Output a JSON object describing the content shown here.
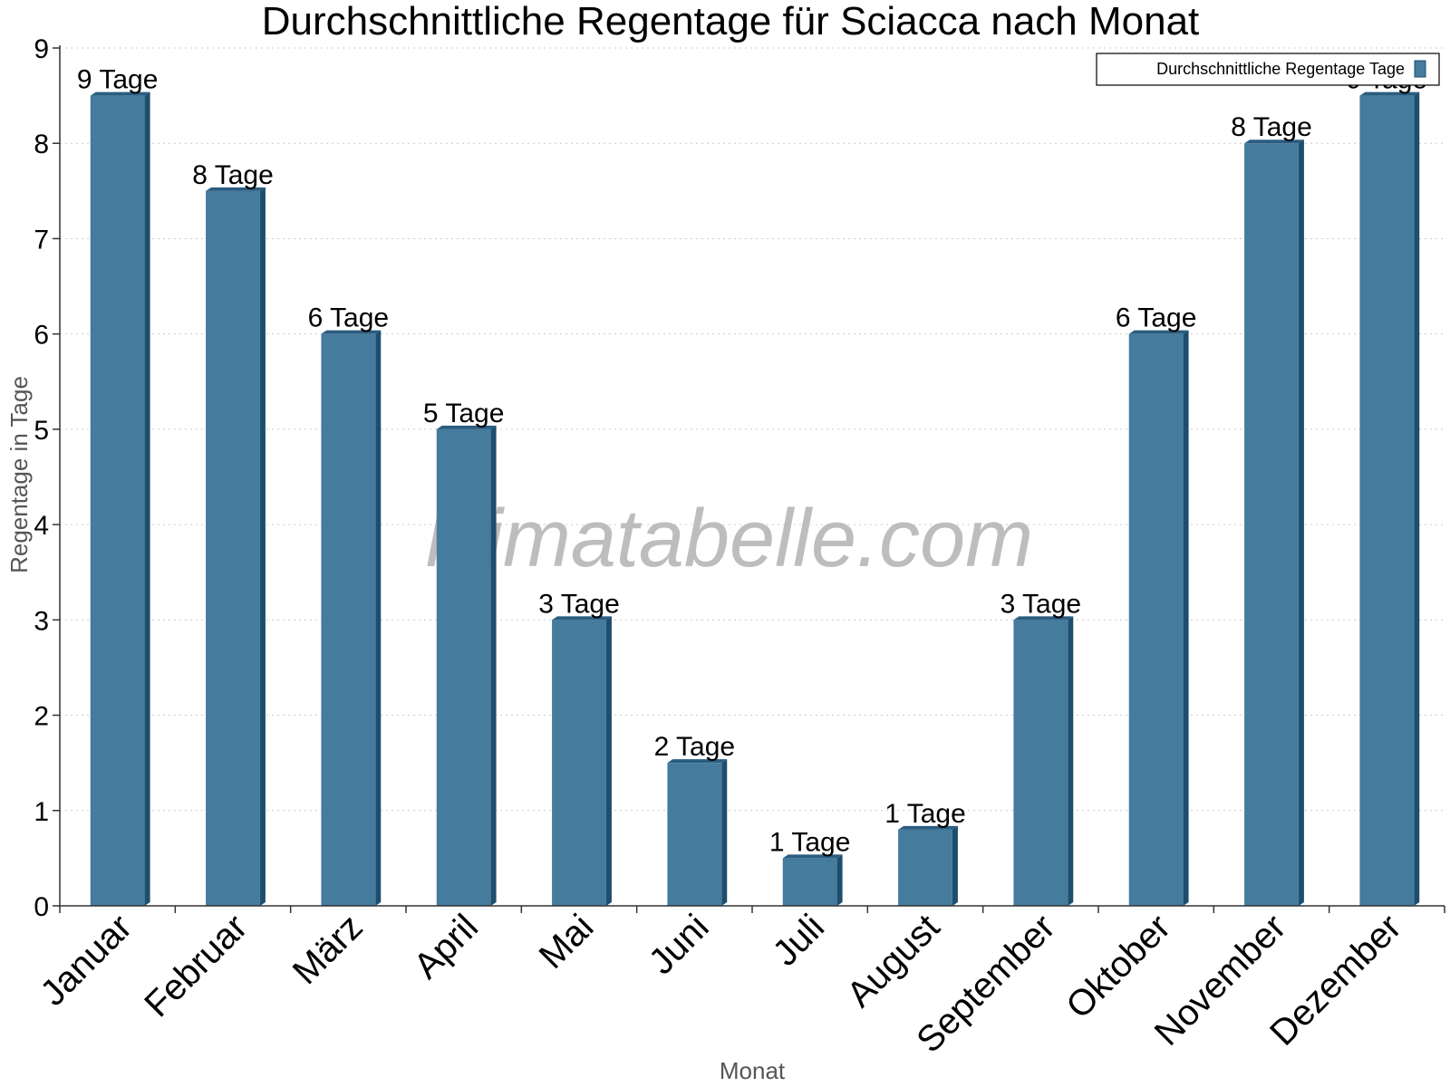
{
  "watermark": "klimatabelle.com",
  "colors": {
    "bar_front": "#457b9d",
    "bar_side": "#1d4e6e",
    "bar_top": "#2a5d80",
    "grid": "#cccccc",
    "axis": "#333333"
  },
  "chart_data": {
    "type": "bar",
    "title": "Durchschnittliche Regentage für Sciacca nach Monat",
    "xlabel": "Monat",
    "ylabel": "Regentage in Tage",
    "ylim": [
      0,
      9
    ],
    "yticks": [
      "0",
      "1",
      "2",
      "3",
      "4",
      "5",
      "6",
      "7",
      "8",
      "9"
    ],
    "grid": true,
    "legend": {
      "placement": "top-right",
      "entries": [
        "Durchschnittliche Regentage Tage"
      ]
    },
    "categories": [
      "Januar",
      "Februar",
      "März",
      "April",
      "Mai",
      "Juni",
      "Juli",
      "August",
      "September",
      "Oktober",
      "November",
      "Dezember"
    ],
    "series": [
      {
        "name": "Durchschnittliche Regentage Tage",
        "values": [
          8.5,
          7.5,
          6,
          5,
          3,
          1.5,
          0.5,
          0.8,
          3,
          6,
          8,
          8.5
        ],
        "labels": [
          "9 Tage",
          "8 Tage",
          "6 Tage",
          "5 Tage",
          "3 Tage",
          "2 Tage",
          "1 Tage",
          "1 Tage",
          "3 Tage",
          "6 Tage",
          "8 Tage",
          "9 Tage"
        ]
      }
    ]
  }
}
